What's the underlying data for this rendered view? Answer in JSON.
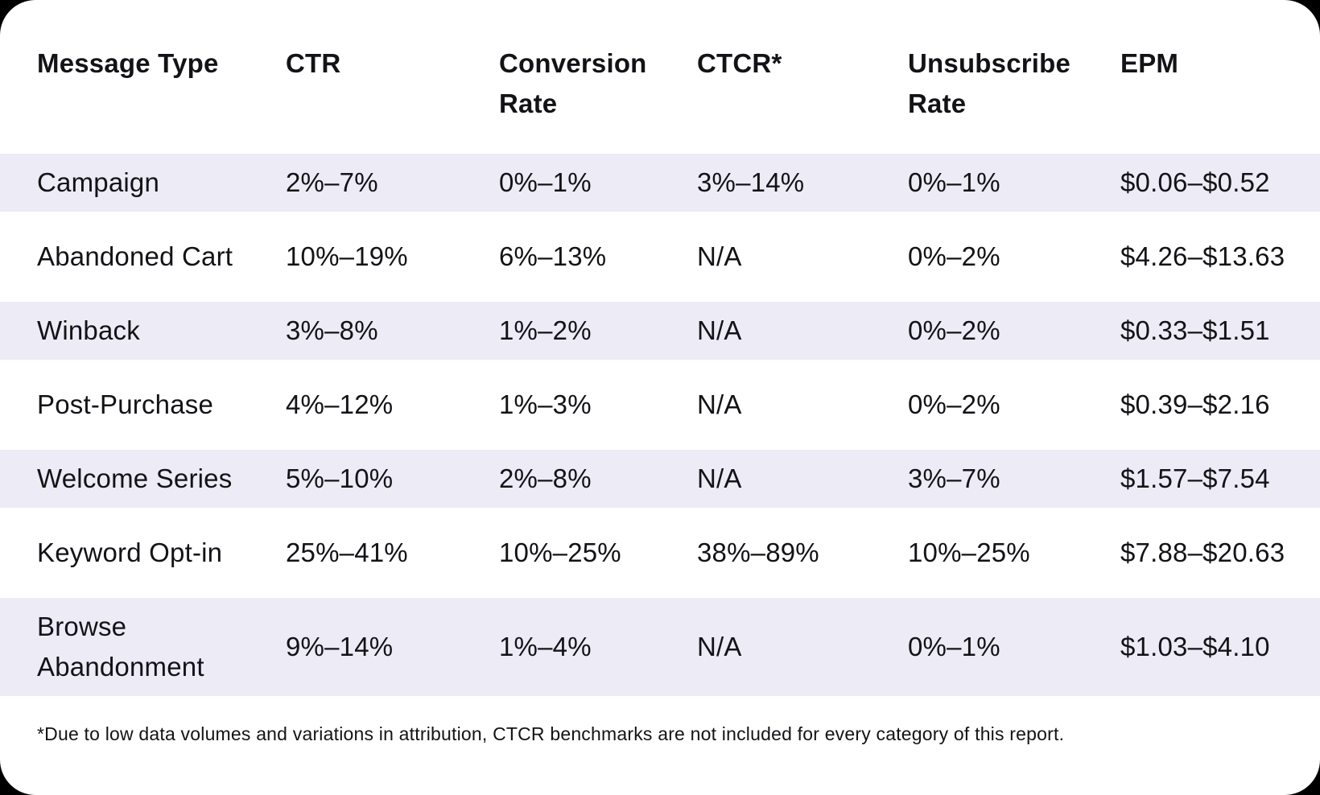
{
  "colors": {
    "page_background": "#000000",
    "card_background": "#ffffff",
    "row_stripe": "#edebf5",
    "text": "#131317"
  },
  "chart_data": {
    "type": "table",
    "columns": [
      "Message Type",
      "CTR",
      "Conversion Rate",
      "CTCR*",
      "Unsubscribe Rate",
      "EPM"
    ],
    "rows": [
      [
        "Campaign",
        "2%–7%",
        "0%–1%",
        "3%–14%",
        "0%–1%",
        "$0.06–$0.52"
      ],
      [
        "Abandoned Cart",
        "10%–19%",
        "6%–13%",
        "N/A",
        "0%–2%",
        "$4.26–$13.63"
      ],
      [
        "Winback",
        "3%–8%",
        "1%–2%",
        "N/A",
        "0%–2%",
        "$0.33–$1.51"
      ],
      [
        "Post-Purchase",
        "4%–12%",
        "1%–3%",
        "N/A",
        "0%–2%",
        "$0.39–$2.16"
      ],
      [
        "Welcome Series",
        "5%–10%",
        "2%–8%",
        "N/A",
        "3%–7%",
        "$1.57–$7.54"
      ],
      [
        "Keyword Opt-in",
        "25%–41%",
        "10%–25%",
        "38%–89%",
        "10%–25%",
        "$7.88–$20.63"
      ],
      [
        "Browse Abandonment",
        "9%–14%",
        "1%–4%",
        "N/A",
        "0%–1%",
        "$1.03–$4.10"
      ]
    ],
    "footnote": "*Due to low data volumes and variations in attribution, CTCR benchmarks are not included for every category of this report.",
    "layout": {
      "striped_rows": "odd",
      "grid": "off",
      "first_column_is_row_label": true
    }
  }
}
